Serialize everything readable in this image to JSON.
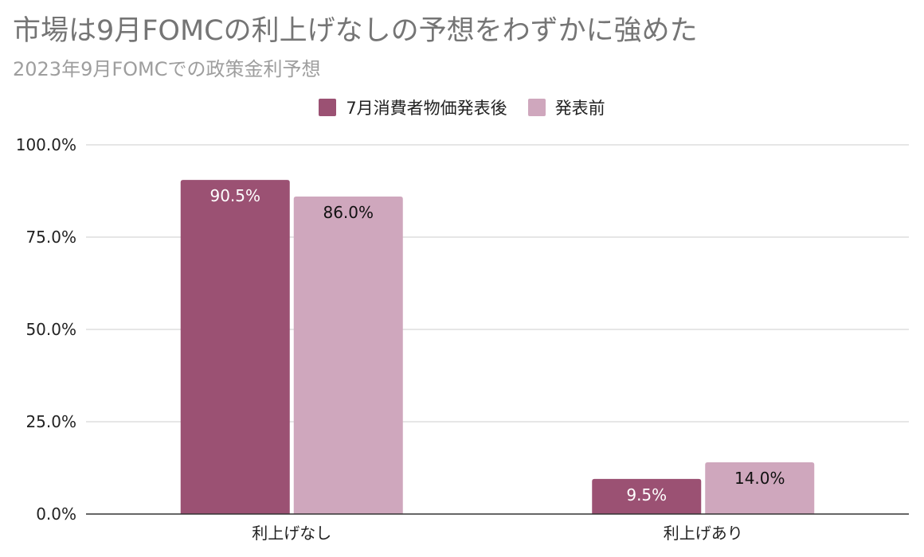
{
  "chart_data": {
    "type": "bar",
    "title": "市場は9月FOMCの利上げなしの予想をわずかに強めた",
    "subtitle": "2023年9月FOMCでの政策金利予想",
    "categories": [
      "利上げなし",
      "利上げあり"
    ],
    "series": [
      {
        "name": "7月消費者物価発表後",
        "values": [
          90.5,
          9.5
        ],
        "labels": [
          "90.5%",
          "9.5%"
        ],
        "color": "#9b5173",
        "label_color": "#ffffff"
      },
      {
        "name": "発表前",
        "values": [
          86.0,
          14.0
        ],
        "labels": [
          "86.0%",
          "14.0%"
        ],
        "color": "#cfa7bd",
        "label_color": "#111111"
      }
    ],
    "ylim": [
      0,
      100
    ],
    "yticks": [
      0,
      25,
      50,
      75,
      100
    ],
    "ytick_labels": [
      "0.0%",
      "25.0%",
      "50.0%",
      "75.0%",
      "100.0%"
    ],
    "xlabel": "",
    "ylabel": "",
    "grid": true,
    "legend_position": "top-center",
    "grid_color": "#cccccc",
    "axis_color": "#333333"
  }
}
